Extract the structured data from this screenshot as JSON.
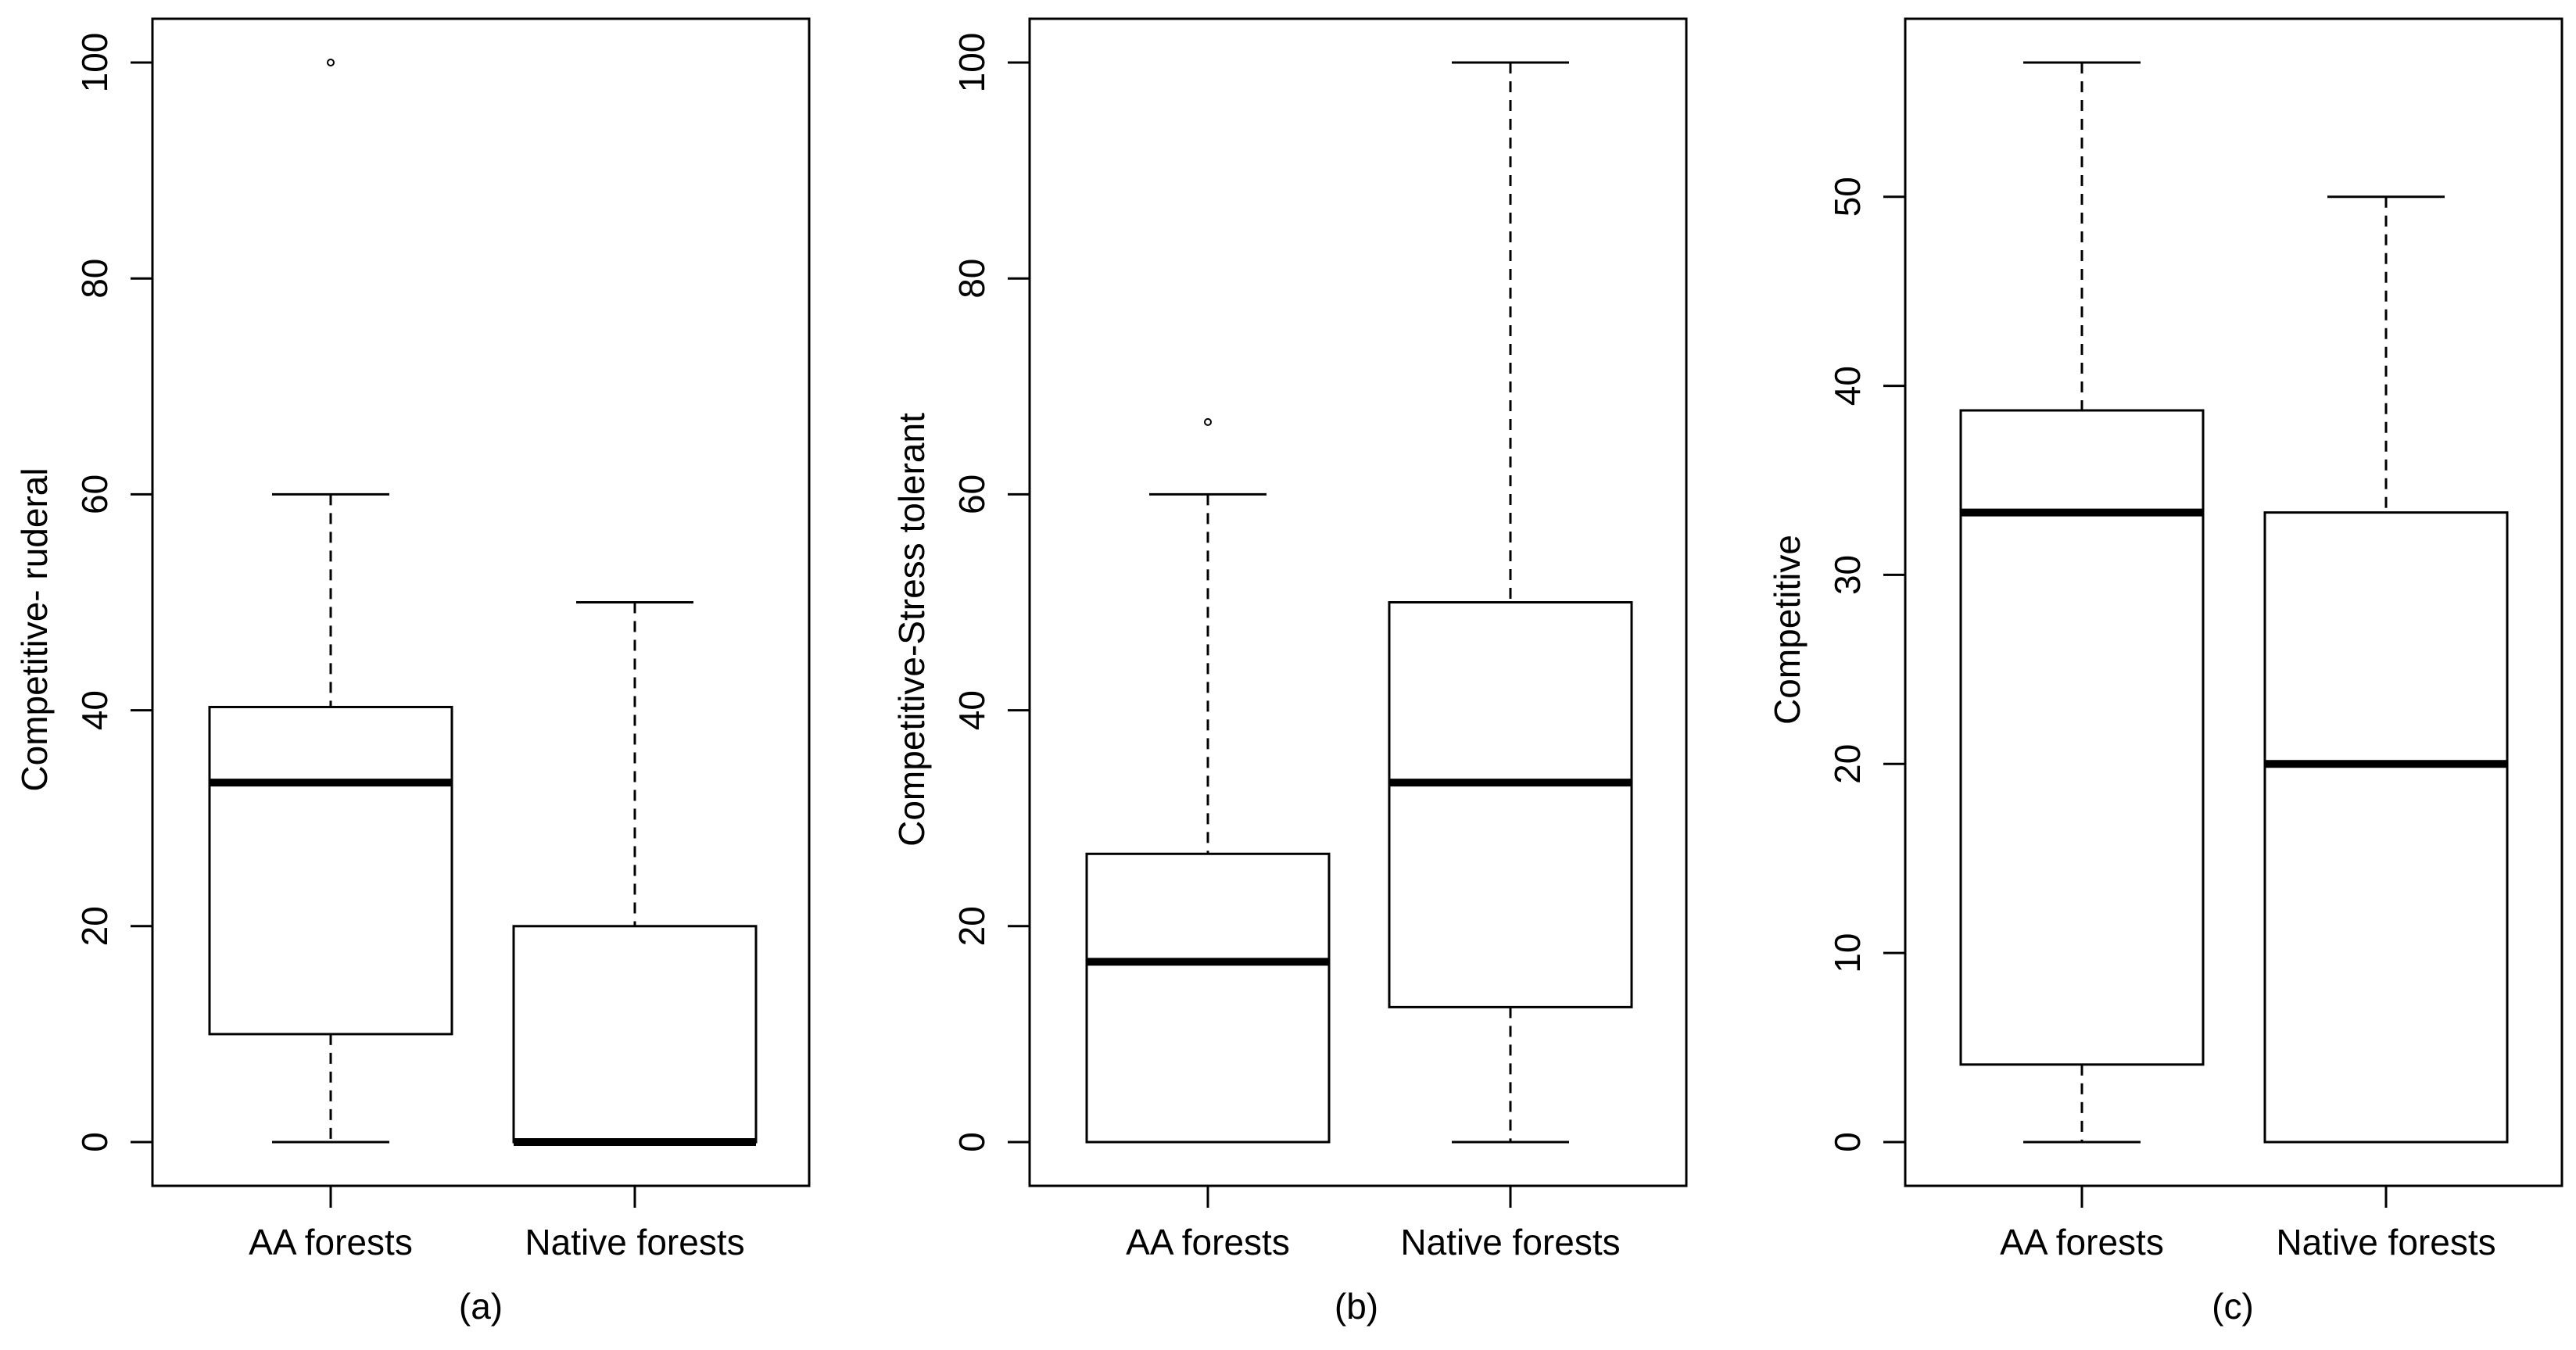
{
  "chart_data": [
    {
      "type": "box",
      "panel_label": "(a)",
      "ylabel": "Competitive- ruderal",
      "categories": [
        "AA forests",
        "Native forests"
      ],
      "ylim": [
        0,
        100
      ],
      "yticks": [
        0,
        20,
        40,
        60,
        80,
        100
      ],
      "boxes": [
        {
          "category": "AA forests",
          "min": 0,
          "q1": 10,
          "median": 33.3,
          "q3": 40.3,
          "max": 60,
          "outliers": [
            100
          ]
        },
        {
          "category": "Native forests",
          "min": 0,
          "q1": 0,
          "median": 0,
          "q3": 20,
          "max": 50,
          "outliers": []
        }
      ]
    },
    {
      "type": "box",
      "panel_label": "(b)",
      "ylabel": "Competitive-Stress tolerant",
      "categories": [
        "AA forests",
        "Native forests"
      ],
      "ylim": [
        0,
        100
      ],
      "yticks": [
        0,
        20,
        40,
        60,
        80,
        100
      ],
      "boxes": [
        {
          "category": "AA forests",
          "min": 0,
          "q1": 0,
          "median": 16.7,
          "q3": 26.7,
          "max": 60,
          "outliers": [
            66.7
          ]
        },
        {
          "category": "Native forests",
          "min": 0,
          "q1": 12.5,
          "median": 33.3,
          "q3": 50,
          "max": 100,
          "outliers": []
        }
      ]
    },
    {
      "type": "box",
      "panel_label": "(c)",
      "ylabel": "Competitive",
      "categories": [
        "AA forests",
        "Native forests"
      ],
      "ylim": [
        0,
        57.1
      ],
      "yticks": [
        0,
        10,
        20,
        30,
        40,
        50
      ],
      "boxes": [
        {
          "category": "AA forests",
          "min": 0,
          "q1": 4.1,
          "median": 33.3,
          "q3": 38.7,
          "max": 57.1,
          "outliers": []
        },
        {
          "category": "Native forests",
          "min": 0,
          "q1": 0,
          "median": 20,
          "q3": 33.3,
          "max": 50,
          "outliers": []
        }
      ]
    }
  ]
}
